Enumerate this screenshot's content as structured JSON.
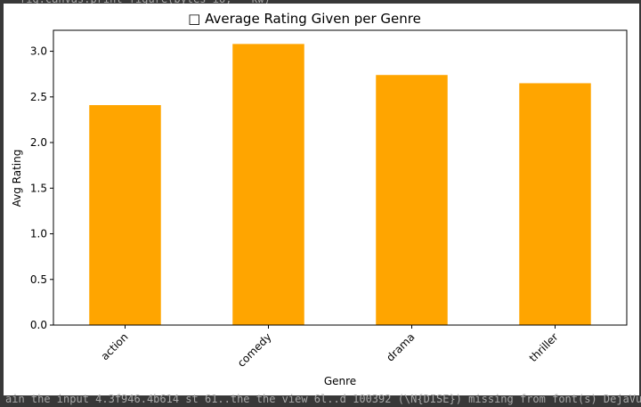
{
  "output": {
    "code_top": "fig.canvas.print_figure(bytes_io, **kw)",
    "code_bottom": "ain the input 4.3f946.4b614 st 61..the the view  6l..d  100392 (\\N{DISE}) missing from font(s) DejaVu Sans."
  },
  "colors": {
    "bar": "#ffa500",
    "background": "#383838"
  },
  "chart_data": {
    "type": "bar",
    "title_glyph": "□",
    "title": "Average Rating Given per Genre",
    "xlabel": "Genre",
    "ylabel": "Avg Rating",
    "categories": [
      "action",
      "comedy",
      "drama",
      "thriller"
    ],
    "values": [
      2.41,
      3.08,
      2.74,
      2.65
    ],
    "ylim": [
      0,
      3.23
    ],
    "yticks": [
      "0.0",
      "0.5",
      "1.0",
      "1.5",
      "2.0",
      "2.5",
      "3.0"
    ],
    "grid": false,
    "legend": "none"
  }
}
